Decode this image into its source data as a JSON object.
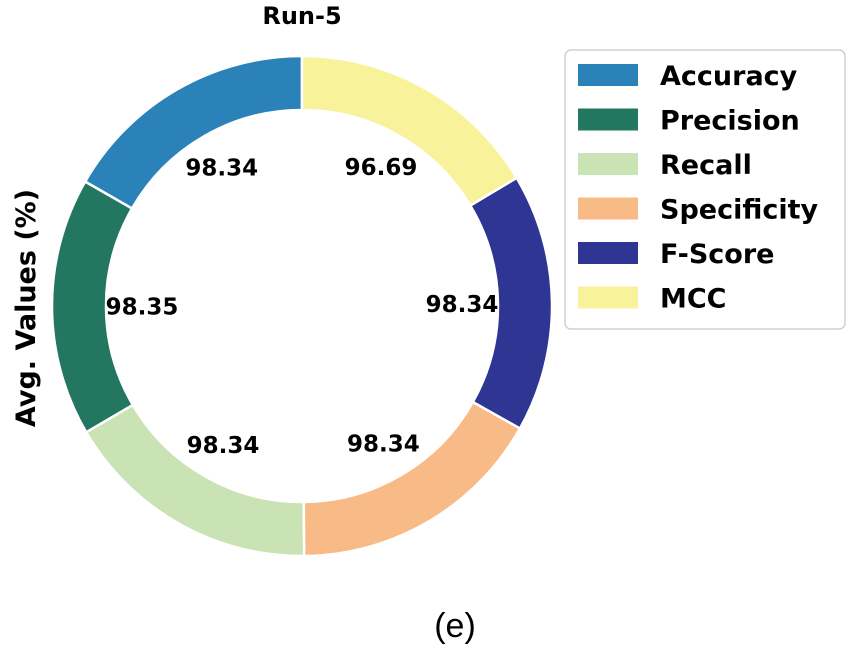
{
  "chart_data": {
    "type": "pie",
    "subtype": "donut",
    "title": "Run-5",
    "ylabel": "Avg. Values (%)",
    "caption": "(e)",
    "categories": [
      "Accuracy",
      "Precision",
      "Recall",
      "Specificity",
      "F-Score",
      "MCC"
    ],
    "values": [
      98.34,
      98.35,
      98.34,
      98.34,
      98.34,
      96.69
    ],
    "value_labels": [
      "98.34",
      "98.35",
      "98.34",
      "98.34",
      "98.34",
      "96.69"
    ],
    "colors": [
      "#2b82b8",
      "#23765f",
      "#c9e3b4",
      "#f8bb87",
      "#2e3592",
      "#f8f29a"
    ],
    "start_angle_deg": 90,
    "direction": "counterclockwise",
    "legend_position": "upper-right"
  }
}
